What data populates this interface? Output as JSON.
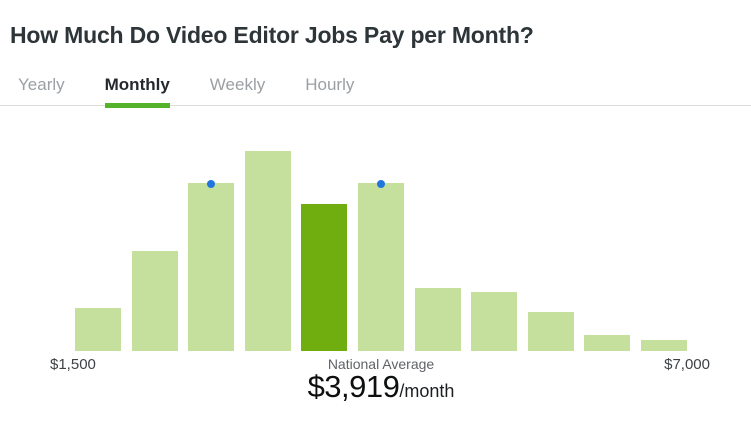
{
  "header": {
    "title": "How Much Do Video Editor Jobs Pay per Month?"
  },
  "tabs": {
    "items": [
      {
        "label": "Yearly",
        "active": false
      },
      {
        "label": "Monthly",
        "active": true
      },
      {
        "label": "Weekly",
        "active": false
      },
      {
        "label": "Hourly",
        "active": false
      }
    ]
  },
  "chart_data": {
    "type": "bar",
    "title": "How Much Do Video Editor Jobs Pay per Month?",
    "x_min_label": "$1,500",
    "x_max_label": "$7,000",
    "x_range_usd": [
      1500,
      7000
    ],
    "bin_width_usd": 500,
    "grid": false,
    "legend": null,
    "bins": [
      {
        "range_usd": "1500-2000",
        "height_pct": 21.5
      },
      {
        "range_usd": "2000-2500",
        "height_pct": 50
      },
      {
        "range_usd": "2500-3000",
        "height_pct": 84,
        "marker": true
      },
      {
        "range_usd": "3000-3500",
        "height_pct": 100
      },
      {
        "range_usd": "3500-4000",
        "height_pct": 73.5,
        "highlight": true
      },
      {
        "range_usd": "4000-4500",
        "height_pct": 84,
        "marker": true
      },
      {
        "range_usd": "4500-5000",
        "height_pct": 31.5
      },
      {
        "range_usd": "5000-5500",
        "height_pct": 29.5
      },
      {
        "range_usd": "5500-6000",
        "height_pct": 19.5
      },
      {
        "range_usd": "6000-6500",
        "height_pct": 8
      },
      {
        "range_usd": "6500-7000",
        "height_pct": 5.5
      }
    ],
    "highlight_index": 4,
    "marker_indexes": [
      2,
      5
    ],
    "national_average": {
      "label": "National Average",
      "value": "$3,919",
      "unit": "/month"
    }
  },
  "theme": {
    "bar_color": "#c5e09c",
    "highlight_bar_color": "#70ad0f",
    "accent_green": "#55b22b",
    "marker_blue": "#2176dd",
    "title_color": "#2d3539",
    "active_tab_color": "#24292e",
    "inactive_tab_color": "#9aa0a3",
    "axis_label_color": "#3d4246",
    "muted_label_color": "#5f6368",
    "divider_color": "#dcdcdc"
  }
}
